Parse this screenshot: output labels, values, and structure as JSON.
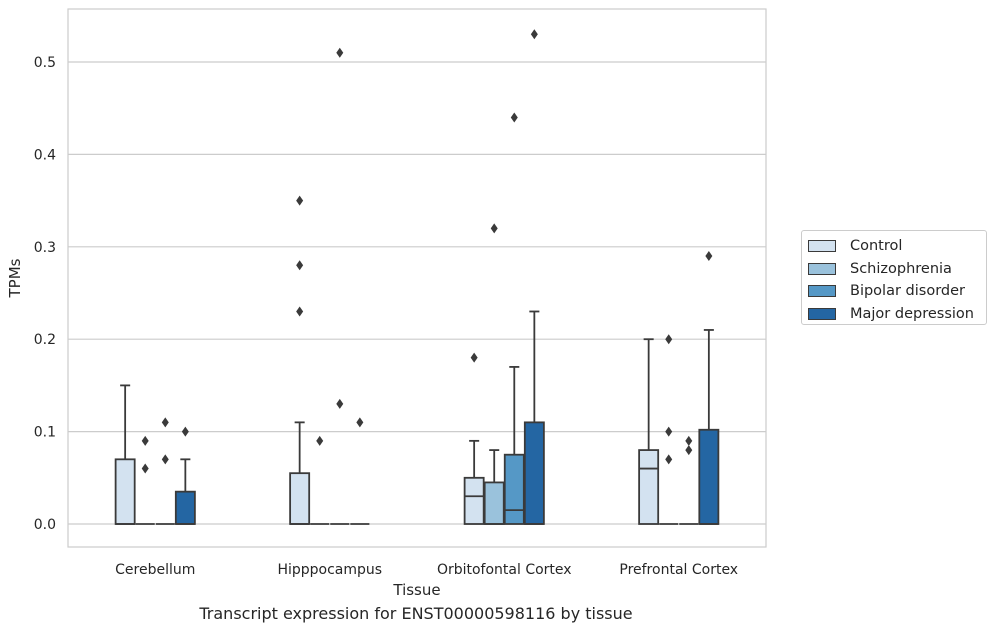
{
  "chart_data": {
    "type": "box",
    "title": "",
    "caption": "Transcript expression for ENST00000598116 by tissue",
    "xlabel": "Tissue",
    "ylabel": "TPMs",
    "ylim": [
      -0.025,
      0.56
    ],
    "yticks": [
      "0.0",
      "0.1",
      "0.2",
      "0.3",
      "0.4",
      "0.5"
    ],
    "ytick_values": [
      0.0,
      0.1,
      0.2,
      0.3,
      0.4,
      0.5
    ],
    "grid": true,
    "legend_position": "right",
    "categories": [
      "Cerebellum",
      "Hipppocampus",
      "Orbitofontal Cortex",
      "Prefrontal Cortex"
    ],
    "series": [
      {
        "name": "Control",
        "color": "#d3e2f0",
        "boxes": [
          {
            "q1": 0.0,
            "median": 0.0,
            "q3": 0.07,
            "whisker_low": 0.0,
            "whisker_high": 0.15,
            "outliers": []
          },
          {
            "q1": 0.0,
            "median": 0.0,
            "q3": 0.055,
            "whisker_low": 0.0,
            "whisker_high": 0.11,
            "outliers": [
              0.23,
              0.28,
              0.35
            ]
          },
          {
            "q1": 0.0,
            "median": 0.03,
            "q3": 0.05,
            "whisker_low": 0.0,
            "whisker_high": 0.09,
            "outliers": [
              0.18
            ]
          },
          {
            "q1": 0.0,
            "median": 0.06,
            "q3": 0.08,
            "whisker_low": 0.0,
            "whisker_high": 0.2,
            "outliers": []
          }
        ]
      },
      {
        "name": "Schizophrenia",
        "color": "#9ac2dc",
        "boxes": [
          {
            "q1": 0.0,
            "median": 0.0,
            "q3": 0.0,
            "whisker_low": 0.0,
            "whisker_high": 0.0,
            "outliers": [
              0.06,
              0.09
            ]
          },
          {
            "q1": 0.0,
            "median": 0.0,
            "q3": 0.0,
            "whisker_low": 0.0,
            "whisker_high": 0.0,
            "outliers": [
              0.09
            ]
          },
          {
            "q1": 0.0,
            "median": 0.0,
            "q3": 0.045,
            "whisker_low": 0.0,
            "whisker_high": 0.08,
            "outliers": [
              0.32
            ]
          },
          {
            "q1": 0.0,
            "median": 0.0,
            "q3": 0.0,
            "whisker_low": 0.0,
            "whisker_high": 0.0,
            "outliers": [
              0.07,
              0.1,
              0.2
            ]
          }
        ]
      },
      {
        "name": "Bipolar disorder",
        "color": "#5598c6",
        "boxes": [
          {
            "q1": 0.0,
            "median": 0.0,
            "q3": 0.0,
            "whisker_low": 0.0,
            "whisker_high": 0.0,
            "outliers": [
              0.07,
              0.11
            ]
          },
          {
            "q1": 0.0,
            "median": 0.0,
            "q3": 0.0,
            "whisker_low": 0.0,
            "whisker_high": 0.0,
            "outliers": [
              0.13,
              0.51
            ]
          },
          {
            "q1": 0.0,
            "median": 0.015,
            "q3": 0.075,
            "whisker_low": 0.0,
            "whisker_high": 0.17,
            "outliers": [
              0.44
            ]
          },
          {
            "q1": 0.0,
            "median": 0.0,
            "q3": 0.0,
            "whisker_low": 0.0,
            "whisker_high": 0.0,
            "outliers": [
              0.08,
              0.09
            ]
          }
        ]
      },
      {
        "name": "Major depression",
        "color": "#2466a3",
        "boxes": [
          {
            "q1": 0.0,
            "median": 0.0,
            "q3": 0.035,
            "whisker_low": 0.0,
            "whisker_high": 0.07,
            "outliers": [
              0.1
            ]
          },
          {
            "q1": 0.0,
            "median": 0.0,
            "q3": 0.0,
            "whisker_low": 0.0,
            "whisker_high": 0.0,
            "outliers": [
              0.11
            ]
          },
          {
            "q1": 0.0,
            "median": 0.0,
            "q3": 0.11,
            "whisker_low": 0.0,
            "whisker_high": 0.23,
            "outliers": [
              0.53
            ]
          },
          {
            "q1": 0.0,
            "median": 0.0,
            "q3": 0.102,
            "whisker_low": 0.0,
            "whisker_high": 0.21,
            "outliers": [
              0.29
            ]
          }
        ]
      }
    ]
  }
}
